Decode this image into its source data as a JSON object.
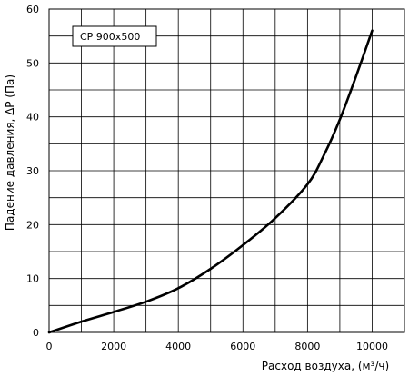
{
  "chart_data": {
    "type": "line",
    "title": "",
    "xlabel": "Расход воздуха, (м³/ч)",
    "ylabel": "Падение давления, ΔP (Па)",
    "xlim": [
      0,
      11000
    ],
    "ylim": [
      0,
      60
    ],
    "x_ticks": [
      0,
      2000,
      4000,
      6000,
      8000,
      10000
    ],
    "y_ticks": [
      0,
      10,
      20,
      30,
      40,
      50,
      60
    ],
    "grid": true,
    "legend": "top-left",
    "series": [
      {
        "name": "CP 900x500",
        "x": [
          0,
          1000,
          2000,
          3000,
          4000,
          5000,
          6000,
          7000,
          8000,
          8500,
          9000,
          9500,
          10000
        ],
        "y": [
          0,
          2,
          3.8,
          5.7,
          8.2,
          11.8,
          16.2,
          21.2,
          27.5,
          32.8,
          39.5,
          47.5,
          56
        ]
      }
    ]
  }
}
